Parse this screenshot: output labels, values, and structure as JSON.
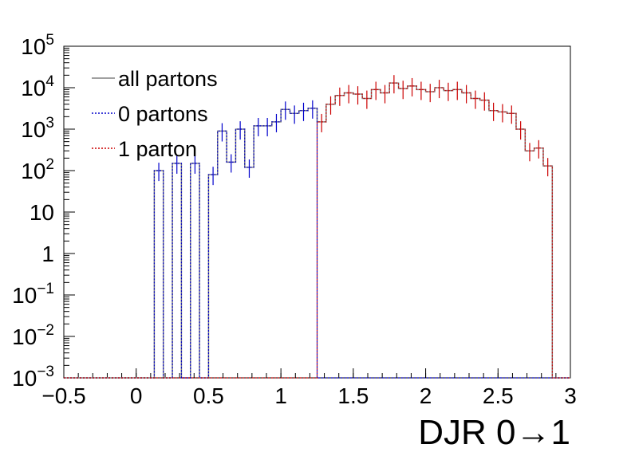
{
  "chart_data": {
    "type": "histogram",
    "xlabel": "DJR 0→1",
    "ylabel": "",
    "xlim": [
      -0.5,
      3.0
    ],
    "ylim": [
      0.001,
      100000
    ],
    "log_y": true,
    "bin_width": 0.0625,
    "x_ticks": [
      {
        "value": -0.5,
        "label": "−0.5"
      },
      {
        "value": 0,
        "label": "0"
      },
      {
        "value": 0.5,
        "label": "0.5"
      },
      {
        "value": 1,
        "label": "1"
      },
      {
        "value": 1.5,
        "label": "1.5"
      },
      {
        "value": 2,
        "label": "2"
      },
      {
        "value": 2.5,
        "label": "2.5"
      },
      {
        "value": 3,
        "label": "3"
      }
    ],
    "y_ticks": [
      {
        "value": 0.001,
        "base": "10",
        "exp": "−3"
      },
      {
        "value": 0.01,
        "base": "10",
        "exp": "−2"
      },
      {
        "value": 0.1,
        "base": "10",
        "exp": "−1"
      },
      {
        "value": 1,
        "base": "1",
        "exp": ""
      },
      {
        "value": 10,
        "base": "10",
        "exp": ""
      },
      {
        "value": 100,
        "base": "10",
        "exp": "2"
      },
      {
        "value": 1000,
        "base": "10",
        "exp": "3"
      },
      {
        "value": 10000,
        "base": "10",
        "exp": "4"
      },
      {
        "value": 100000,
        "base": "10",
        "exp": "5"
      }
    ],
    "legend": {
      "position": "top-left",
      "entries": [
        {
          "label": "all partons",
          "color": "#808080",
          "style": "solid"
        },
        {
          "label": "0 partons",
          "color": "#0000cc",
          "style": "dotted"
        },
        {
          "label": "1 parton",
          "color": "#cc0000",
          "style": "dotted"
        }
      ]
    },
    "series": [
      {
        "name": "0 partons",
        "color": "#0000cc",
        "x_start": 0.125,
        "values": [
          100,
          0,
          150,
          0,
          150,
          0,
          80,
          900,
          160,
          1000,
          120,
          1200,
          1200,
          1500,
          3000,
          2400,
          2800,
          3200
        ]
      },
      {
        "name": "1 parton",
        "color": "#cc0000",
        "x_start": 1.25,
        "values": [
          1500,
          4000,
          6500,
          7500,
          7000,
          5500,
          9000,
          7500,
          13000,
          9500,
          11000,
          9000,
          8000,
          10000,
          8500,
          9000,
          7500,
          5500,
          5000,
          2800,
          2600,
          2400,
          1000,
          300,
          350,
          130
        ]
      }
    ]
  }
}
